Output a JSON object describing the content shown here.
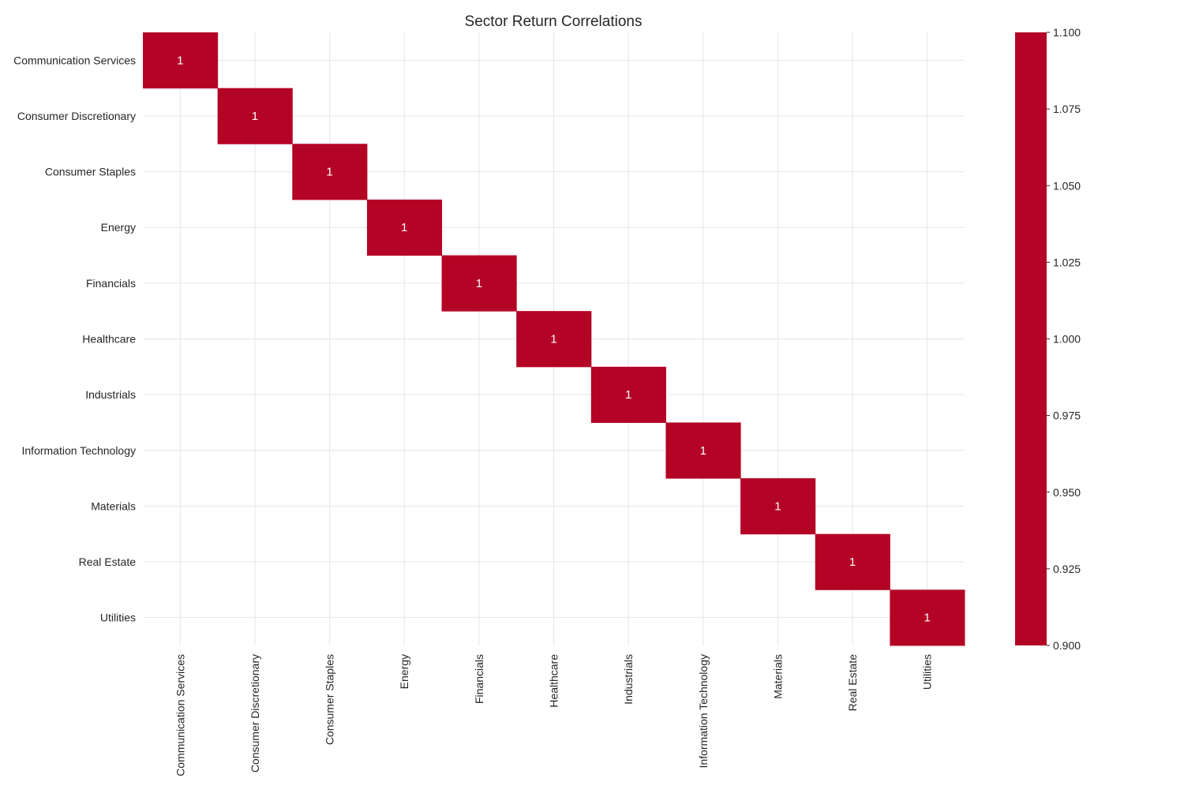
{
  "chart_data": {
    "type": "heatmap",
    "title": "Sector Return Correlations",
    "xlabel": "",
    "ylabel": "",
    "categories": [
      "Communication Services",
      "Consumer Discretionary",
      "Consumer Staples",
      "Energy",
      "Financials",
      "Healthcare",
      "Industrials",
      "Information Technology",
      "Materials",
      "Real Estate",
      "Utilities"
    ],
    "cells": [
      {
        "row": 0,
        "col": 0,
        "value": 1,
        "label": "1"
      },
      {
        "row": 1,
        "col": 1,
        "value": 1,
        "label": "1"
      },
      {
        "row": 2,
        "col": 2,
        "value": 1,
        "label": "1"
      },
      {
        "row": 3,
        "col": 3,
        "value": 1,
        "label": "1"
      },
      {
        "row": 4,
        "col": 4,
        "value": 1,
        "label": "1"
      },
      {
        "row": 5,
        "col": 5,
        "value": 1,
        "label": "1"
      },
      {
        "row": 6,
        "col": 6,
        "value": 1,
        "label": "1"
      },
      {
        "row": 7,
        "col": 7,
        "value": 1,
        "label": "1"
      },
      {
        "row": 8,
        "col": 8,
        "value": 1,
        "label": "1"
      },
      {
        "row": 9,
        "col": 9,
        "value": 1,
        "label": "1"
      },
      {
        "row": 10,
        "col": 10,
        "value": 1,
        "label": "1"
      }
    ],
    "missing_cells": "blank",
    "grid": true,
    "colorbar": {
      "range": [
        0.9,
        1.1
      ],
      "ticks": [
        "0.900",
        "0.925",
        "0.950",
        "0.975",
        "1.000",
        "1.025",
        "1.050",
        "1.075",
        "1.100"
      ],
      "color": "#b40426",
      "placement": "right"
    },
    "colors": {
      "cell": "#b40426",
      "cell_text": "#ffffff",
      "grid": "#e6e6e6",
      "text": "#262626"
    }
  }
}
